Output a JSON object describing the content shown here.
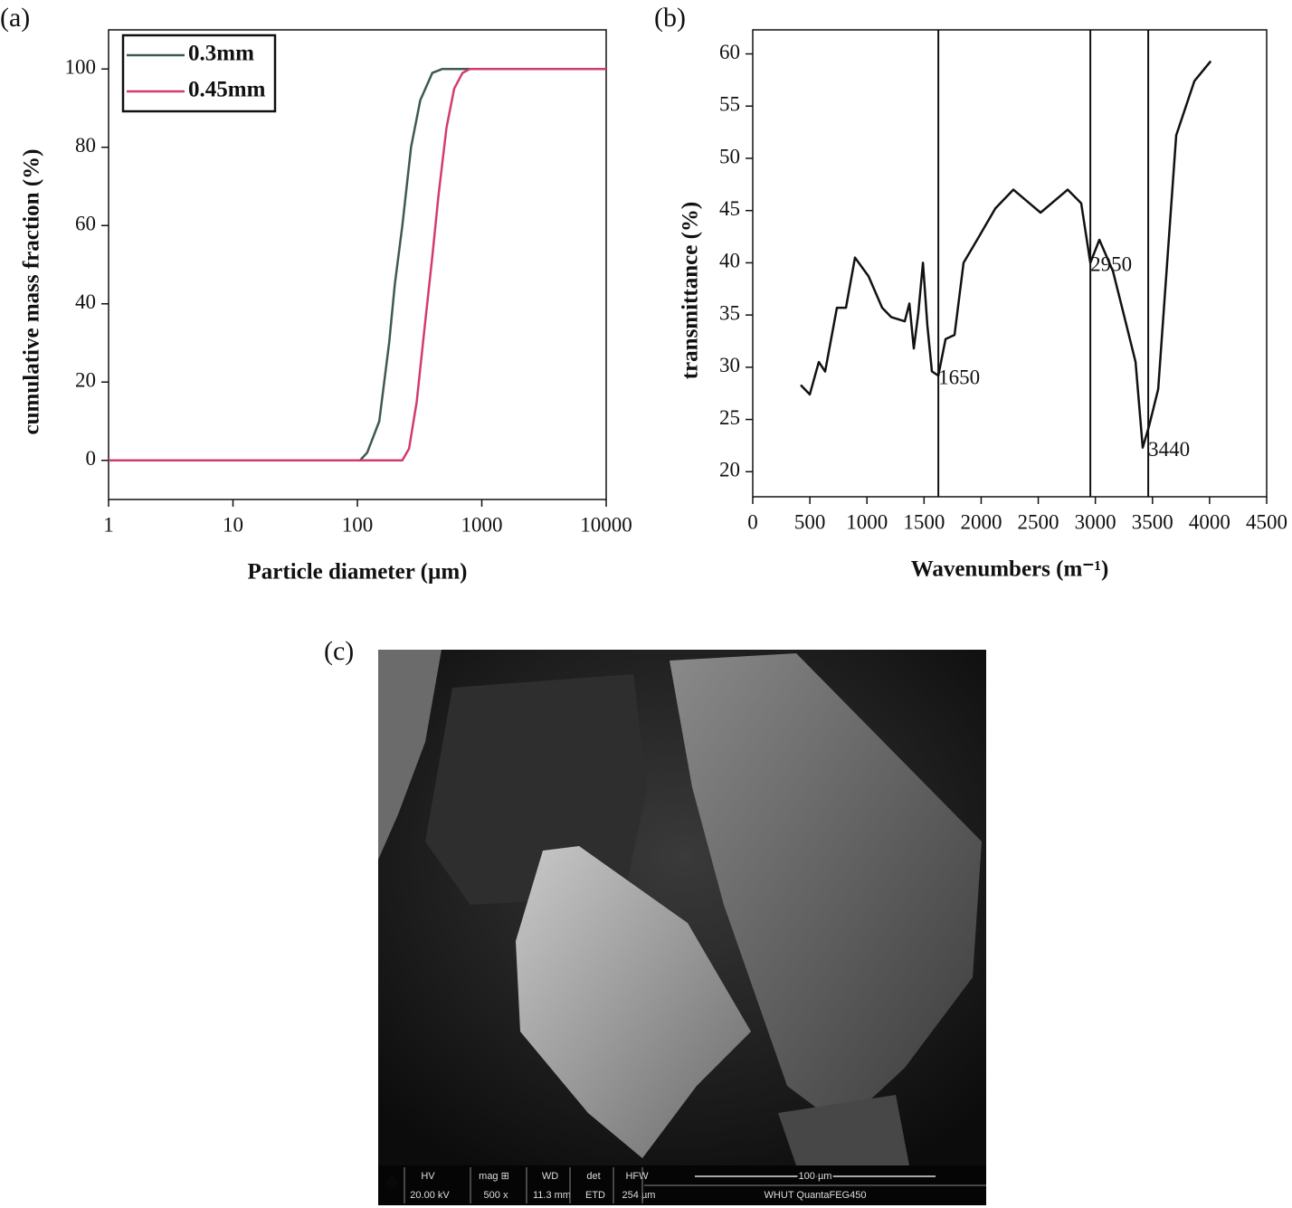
{
  "chart_data": [
    {
      "type": "line",
      "label": "(a)",
      "xscale": "log",
      "xlabel": "Particle diameter (µm)",
      "ylabel": "cumulative mass fraction (%)",
      "xlim": [
        1,
        10000
      ],
      "xticks": [
        1,
        10,
        100,
        1000,
        10000
      ],
      "ylim": [
        -10,
        110
      ],
      "yticks": [
        0,
        20,
        40,
        60,
        80,
        100
      ],
      "legend": "upper left",
      "series": [
        {
          "name": "0.3mm",
          "color": "#3f5a4c",
          "x": [
            1,
            105,
            120,
            150,
            180,
            200,
            230,
            270,
            320,
            400,
            480,
            10000
          ],
          "values": [
            0,
            0,
            2,
            10,
            30,
            45,
            60,
            80,
            92,
            99,
            100,
            100
          ]
        },
        {
          "name": "0.45mm",
          "color": "#d23c6c",
          "x": [
            1,
            230,
            260,
            300,
            350,
            400,
            450,
            520,
            600,
            700,
            800,
            10000
          ],
          "values": [
            0,
            0,
            3,
            15,
            35,
            52,
            68,
            85,
            95,
            99,
            100,
            100
          ]
        }
      ]
    },
    {
      "type": "line",
      "label": "(b)",
      "xlabel": "Wavenumbers (m⁻¹)",
      "ylabel": "transmittance (%)",
      "xlim": [
        0,
        4500
      ],
      "xticks": [
        0,
        500,
        1000,
        1500,
        2000,
        2500,
        3000,
        3500,
        4000,
        4500
      ],
      "ylim": [
        17.6,
        62.3
      ],
      "yticks": [
        20,
        25,
        30,
        35,
        40,
        45,
        50,
        55,
        60
      ],
      "series": [
        {
          "color": "#111111",
          "x": [
            420,
            499,
            578,
            634,
            737,
            816,
            895,
            1014,
            1133,
            1212,
            1331,
            1371,
            1410,
            1450,
            1490,
            1529,
            1569,
            1625,
            1688,
            1767,
            1846,
            1965,
            2124,
            2282,
            2520,
            2758,
            2876,
            2956,
            3035,
            3154,
            3273,
            3352,
            3415,
            3471,
            3550,
            3708,
            3867,
            4010
          ],
          "values": [
            28.3,
            27.4,
            30.5,
            29.6,
            35.7,
            35.7,
            40.5,
            38.7,
            35.7,
            34.8,
            34.4,
            36.1,
            31.8,
            35.2,
            40.0,
            34.0,
            29.6,
            29.2,
            32.7,
            33.1,
            40.0,
            42.2,
            45.2,
            47.0,
            44.8,
            47.0,
            45.7,
            40.0,
            42.2,
            39.2,
            34.0,
            30.5,
            22.3,
            24.4,
            27.9,
            52.2,
            57.4,
            59.3
          ]
        }
      ],
      "annotations": [
        {
          "text": "1650",
          "x": 1625,
          "y": 29.2
        },
        {
          "text": "2950",
          "x": 2956,
          "y": 40.0
        },
        {
          "text": "3440",
          "x": 3463,
          "y": 22.3
        }
      ]
    }
  ],
  "image": {
    "label": "(c)",
    "info_bar": {
      "headers": [
        "HV",
        "mag ⊞",
        "WD",
        "det",
        "HFW"
      ],
      "values": [
        "20.00 kV",
        "500 x",
        "11.3 mm",
        "ETD",
        "254 µm"
      ],
      "scale": "100 µm",
      "instrument": "WHUT QuantaFEG450"
    }
  }
}
